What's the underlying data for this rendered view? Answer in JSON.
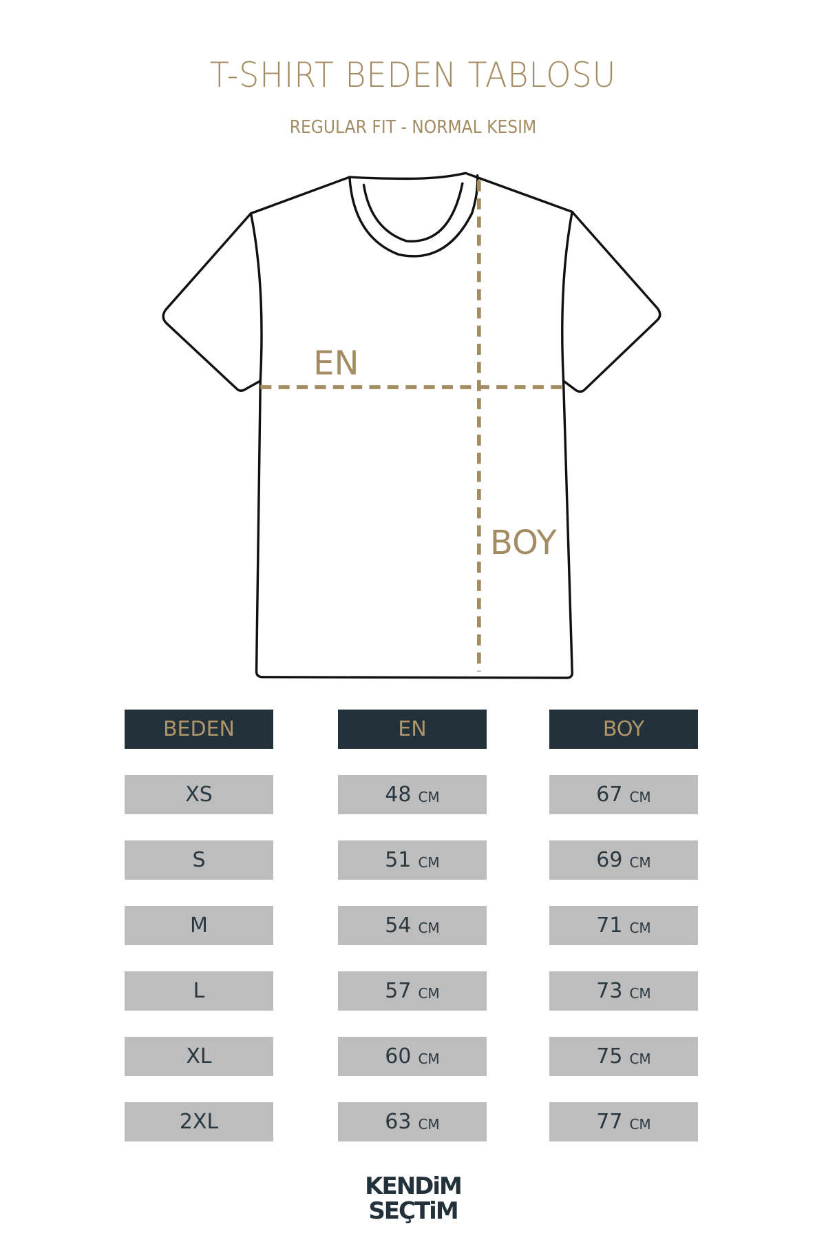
{
  "header": {
    "title": "T-SHIRT BEDEN TABLOSU",
    "subtitle": "REGULAR FIT - NORMAL KESIM"
  },
  "diagram": {
    "width_label": "EN",
    "length_label": "BOY",
    "accent_color": "#a38c62"
  },
  "table": {
    "columns": [
      "BEDEN",
      "EN",
      "BOY"
    ],
    "unit": "CM",
    "rows": [
      {
        "size": "XS",
        "en": "48",
        "boy": "67"
      },
      {
        "size": "S",
        "en": "51",
        "boy": "69"
      },
      {
        "size": "M",
        "en": "54",
        "boy": "71"
      },
      {
        "size": "L",
        "en": "57",
        "boy": "73"
      },
      {
        "size": "XL",
        "en": "60",
        "boy": "75"
      },
      {
        "size": "2XL",
        "en": "63",
        "boy": "77"
      }
    ]
  },
  "logo": {
    "line1": "KENDiM",
    "line2": "SEÇTiM"
  },
  "colors": {
    "header_bg": "#23313b",
    "cell_bg": "#bdbdbd",
    "gold": "#a38c62"
  }
}
